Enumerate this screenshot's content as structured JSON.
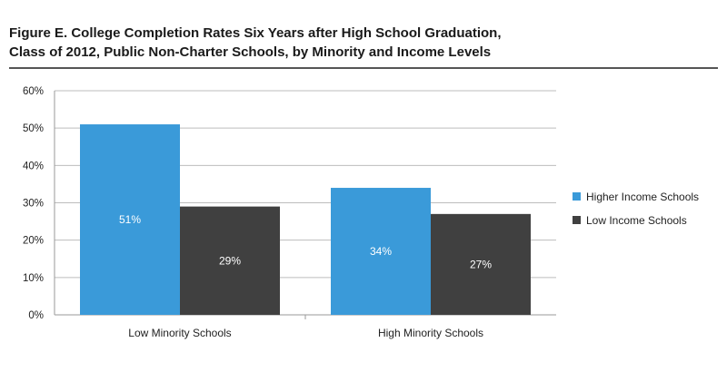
{
  "chart_data": {
    "type": "bar",
    "title": "Figure E. College Completion Rates Six Years after High School Graduation, Class of 2012, Public Non-Charter Schools, by Minority and Income Levels",
    "title_lines": [
      "Figure E. College Completion Rates Six Years after High School Graduation,",
      "Class of 2012, Public Non-Charter Schools, by Minority and Income Levels"
    ],
    "xlabel": "",
    "ylabel": "",
    "categories": [
      "Low Minority Schools",
      "High Minority Schools"
    ],
    "series": [
      {
        "name": "Higher Income Schools",
        "values": [
          51,
          34
        ],
        "labels": [
          "51%",
          "34%"
        ],
        "color": "#3a9ad9"
      },
      {
        "name": "Low Income Schools",
        "values": [
          29,
          27
        ],
        "labels": [
          "29%",
          "27%"
        ],
        "color": "#404040"
      }
    ],
    "ylim": [
      0,
      60
    ],
    "yticks": [
      0,
      10,
      20,
      30,
      40,
      50,
      60
    ],
    "ytick_labels": [
      "0%",
      "10%",
      "20%",
      "30%",
      "40%",
      "50%",
      "60%"
    ],
    "grid": true,
    "legend_position": "right"
  }
}
